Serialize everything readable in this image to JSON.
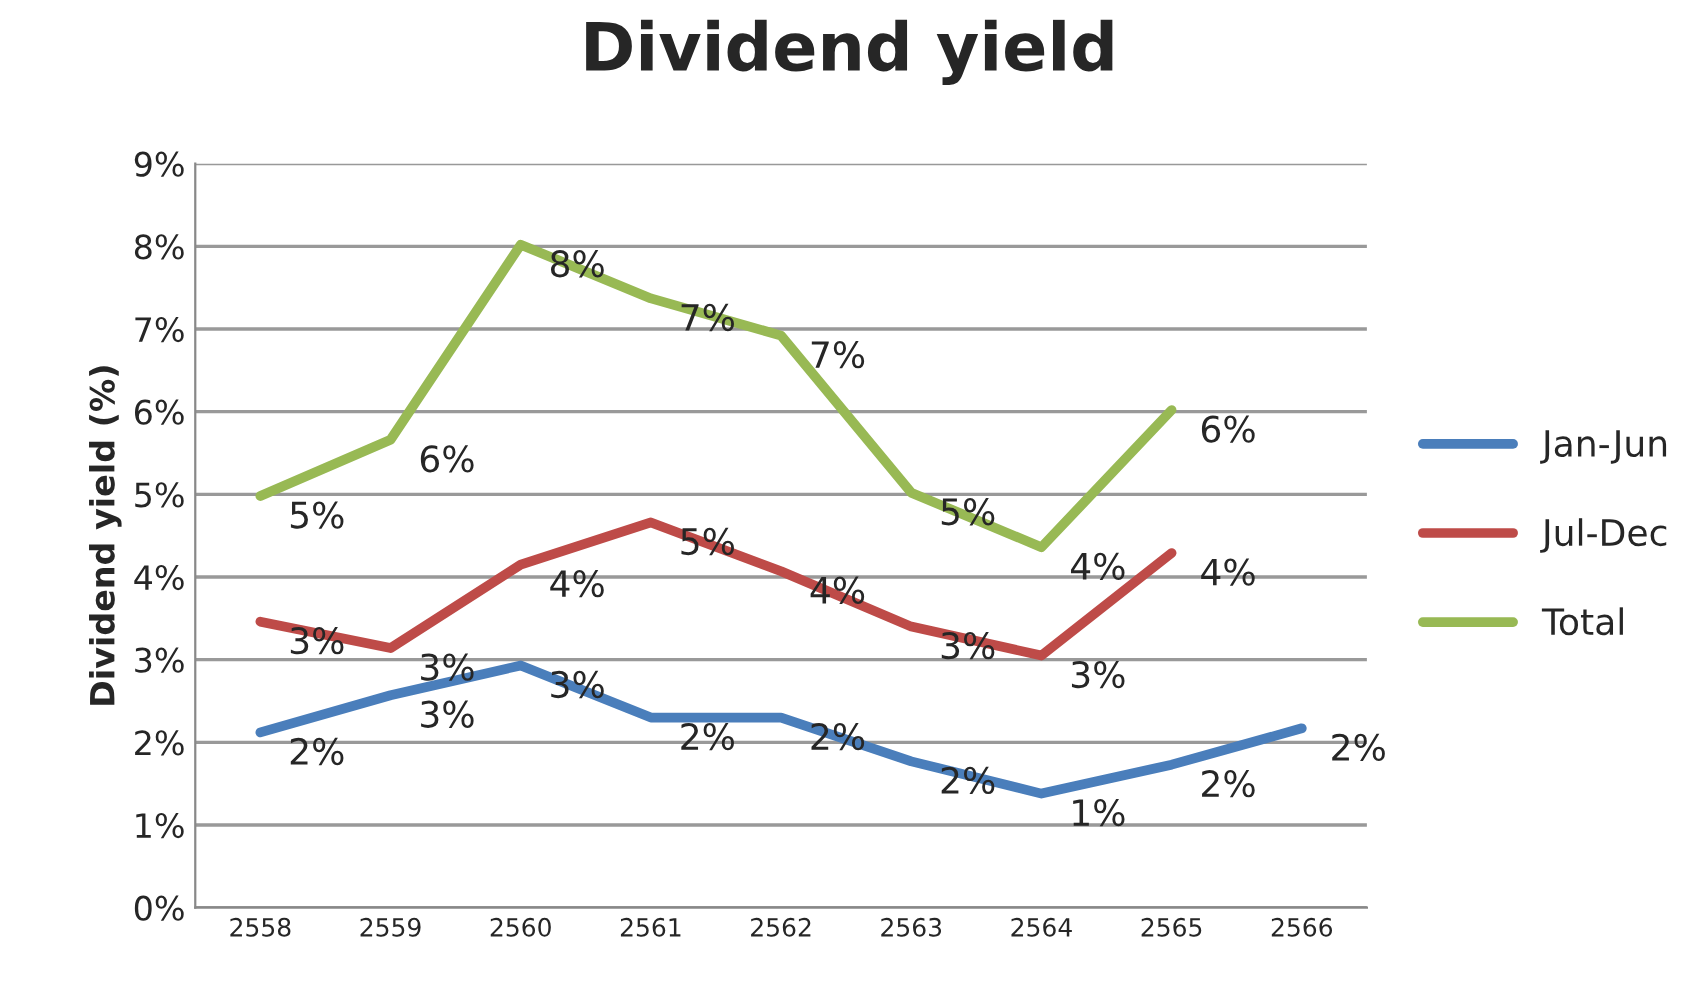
{
  "chart_data": {
    "type": "line",
    "title": "Dividend yield",
    "ylabel": "Dividend yield (%)",
    "categories": [
      "2558",
      "2559",
      "2560",
      "2561",
      "2562",
      "2563",
      "2564",
      "2565",
      "2566"
    ],
    "series": [
      {
        "name": "Jan-Jun",
        "color": "#4a7ebb",
        "values": [
          2.12,
          2.57,
          2.93,
          2.3,
          2.3,
          1.77,
          1.38,
          1.73,
          2.17
        ],
        "value_labels": [
          "2%",
          "3%",
          "3%",
          "2%",
          "2%",
          "2%",
          "1%",
          "2%",
          "2%"
        ]
      },
      {
        "name": "Jul-Dec",
        "color": "#be4b48",
        "values": [
          3.46,
          3.14,
          4.15,
          4.66,
          4.07,
          3.4,
          3.05,
          4.29,
          null
        ],
        "value_labels": [
          "3%",
          "3%",
          "4%",
          "5%",
          "4%",
          "3%",
          "3%",
          "4%",
          null
        ]
      },
      {
        "name": "Total",
        "color": "#98b954",
        "values": [
          4.98,
          5.66,
          8.02,
          7.37,
          6.92,
          5.02,
          4.36,
          6.02,
          null
        ],
        "value_labels": [
          "5%",
          "6%",
          "8%",
          "7%",
          "7%",
          "5%",
          "4%",
          "6%",
          null
        ]
      }
    ],
    "ylim": [
      0,
      9
    ],
    "yticks": [
      {
        "value": 0,
        "label": "0%"
      },
      {
        "value": 1,
        "label": "1%"
      },
      {
        "value": 2,
        "label": "2%"
      },
      {
        "value": 3,
        "label": "3%"
      },
      {
        "value": 4,
        "label": "4%"
      },
      {
        "value": 5,
        "label": "5%"
      },
      {
        "value": 6,
        "label": "6%"
      },
      {
        "value": 7,
        "label": "7%"
      },
      {
        "value": 8,
        "label": "8%"
      },
      {
        "value": 9,
        "label": "9%"
      }
    ],
    "grid": "y",
    "legend": "right",
    "marker": "none",
    "line_style": "solid"
  }
}
